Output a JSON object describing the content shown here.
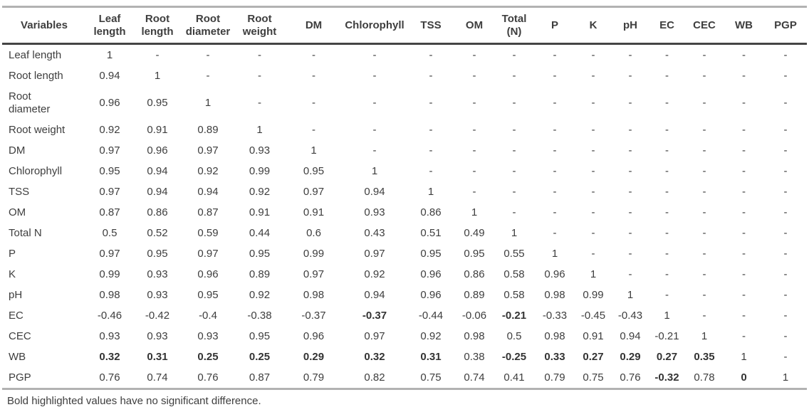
{
  "table": {
    "columns": [
      "Variables",
      "Leaf length",
      "Root length",
      "Root diameter",
      "Root weight",
      "DM",
      "Chlorophyll",
      "TSS",
      "OM",
      "Total (N)",
      "P",
      "K",
      "pH",
      "EC",
      "CEC",
      "WB",
      "PGP"
    ],
    "rows": [
      {
        "label": "Leaf length",
        "values": [
          "1",
          "-",
          "-",
          "-",
          "-",
          "-",
          "-",
          "-",
          "-",
          "-",
          "-",
          "-",
          "-",
          "-",
          "-",
          "-"
        ]
      },
      {
        "label": "Root length",
        "values": [
          "0.94",
          "1",
          "-",
          "-",
          "-",
          "-",
          "-",
          "-",
          "-",
          "-",
          "-",
          "-",
          "-",
          "-",
          "-",
          "-"
        ]
      },
      {
        "label": "Root diameter",
        "values": [
          "0.96",
          "0.95",
          "1",
          "-",
          "-",
          "-",
          "-",
          "-",
          "-",
          "-",
          "-",
          "-",
          "-",
          "-",
          "-",
          "-"
        ]
      },
      {
        "label": "Root weight",
        "values": [
          "0.92",
          "0.91",
          "0.89",
          "1",
          "-",
          "-",
          "-",
          "-",
          "-",
          "-",
          "-",
          "-",
          "-",
          "-",
          "-",
          "-"
        ]
      },
      {
        "label": "DM",
        "values": [
          "0.97",
          "0.96",
          "0.97",
          "0.93",
          "1",
          "-",
          "-",
          "-",
          "-",
          "-",
          "-",
          "-",
          "-",
          "-",
          "-",
          "-"
        ]
      },
      {
        "label": "Chlorophyll",
        "values": [
          "0.95",
          "0.94",
          "0.92",
          "0.99",
          "0.95",
          "1",
          "-",
          "-",
          "-",
          "-",
          "-",
          "-",
          "-",
          "-",
          "-",
          "-"
        ]
      },
      {
        "label": "TSS",
        "values": [
          "0.97",
          "0.94",
          "0.94",
          "0.92",
          "0.97",
          "0.94",
          "1",
          "-",
          "-",
          "-",
          "-",
          "-",
          "-",
          "-",
          "-",
          "-"
        ]
      },
      {
        "label": "OM",
        "values": [
          "0.87",
          "0.86",
          "0.87",
          "0.91",
          "0.91",
          "0.93",
          "0.86",
          "1",
          "-",
          "-",
          "-",
          "-",
          "-",
          "-",
          "-",
          "-"
        ]
      },
      {
        "label": "Total N",
        "values": [
          "0.5",
          "0.52",
          "0.59",
          "0.44",
          "0.6",
          "0.43",
          "0.51",
          "0.49",
          "1",
          "-",
          "-",
          "-",
          "-",
          "-",
          "-",
          "-"
        ]
      },
      {
        "label": "P",
        "values": [
          "0.97",
          "0.95",
          "0.97",
          "0.95",
          "0.99",
          "0.97",
          "0.95",
          "0.95",
          "0.55",
          "1",
          "-",
          "-",
          "-",
          "-",
          "-",
          "-"
        ]
      },
      {
        "label": "K",
        "values": [
          "0.99",
          "0.93",
          "0.96",
          "0.89",
          "0.97",
          "0.92",
          "0.96",
          "0.86",
          "0.58",
          "0.96",
          "1",
          "-",
          "-",
          "-",
          "-",
          "-"
        ]
      },
      {
        "label": "pH",
        "values": [
          "0.98",
          "0.93",
          "0.95",
          "0.92",
          "0.98",
          "0.94",
          "0.96",
          "0.89",
          "0.58",
          "0.98",
          "0.99",
          "1",
          "-",
          "-",
          "-",
          "-"
        ]
      },
      {
        "label": "EC",
        "values": [
          "-0.46",
          "-0.42",
          "-0.4",
          "-0.38",
          "-0.37",
          "-0.37",
          "-0.44",
          "-0.06",
          "-0.21",
          "-0.33",
          "-0.45",
          "-0.43",
          "1",
          "-",
          "-",
          "-"
        ]
      },
      {
        "label": "CEC",
        "values": [
          "0.93",
          "0.93",
          "0.93",
          "0.95",
          "0.96",
          "0.97",
          "0.92",
          "0.98",
          "0.5",
          "0.98",
          "0.91",
          "0.94",
          "-0.21",
          "1",
          "-",
          "-"
        ]
      },
      {
        "label": "WB",
        "values": [
          "0.32",
          "0.31",
          "0.25",
          "0.25",
          "0.29",
          "0.32",
          "0.31",
          "0.38",
          "-0.25",
          "0.33",
          "0.27",
          "0.29",
          "0.27",
          "0.35",
          "1",
          "-"
        ]
      },
      {
        "label": "PGP",
        "values": [
          "0.76",
          "0.74",
          "0.76",
          "0.87",
          "0.79",
          "0.82",
          "0.75",
          "0.74",
          "0.41",
          "0.79",
          "0.75",
          "0.76",
          "-0.32",
          "0.78",
          "0",
          "1"
        ]
      }
    ],
    "bold_cells": {
      "EC": [
        5,
        8
      ],
      "WB": [
        0,
        1,
        2,
        3,
        4,
        5,
        6,
        8,
        9,
        10,
        11,
        12,
        13
      ],
      "PGP": [
        12,
        14
      ]
    },
    "footnote": "Bold highlighted values have no significant difference."
  },
  "colors": {
    "text": "#3e3e3e",
    "outer_rule": "#b2b2b2",
    "header_rule": "#454545",
    "background": "#ffffff"
  }
}
